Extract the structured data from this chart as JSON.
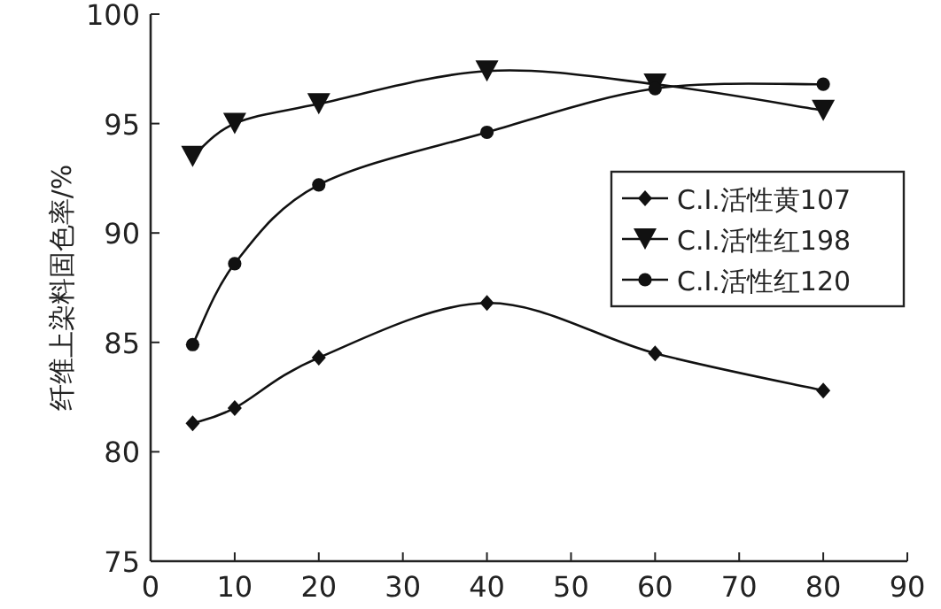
{
  "chart_data": {
    "type": "line",
    "ylabel": "纤维上染料固色率/%",
    "x": [
      5,
      10,
      20,
      40,
      60,
      80
    ],
    "series": [
      {
        "name": "C.I.活性黄107",
        "color": "#111111",
        "marker": "diamond",
        "values": [
          81.3,
          82.0,
          84.3,
          86.8,
          84.5,
          82.8
        ]
      },
      {
        "name": "C.I.活性红198",
        "color": "#111111",
        "marker": "triangle",
        "values": [
          93.5,
          95.0,
          95.9,
          97.4,
          96.8,
          95.6
        ]
      },
      {
        "name": "C.I.活性红120",
        "color": "#111111",
        "marker": "circle",
        "values": [
          84.9,
          88.6,
          92.2,
          94.6,
          96.6,
          96.8
        ]
      }
    ],
    "xlim": [
      0,
      90
    ],
    "xticks": [
      0,
      10,
      20,
      30,
      40,
      50,
      60,
      70,
      80,
      90
    ],
    "ylim": [
      75,
      100
    ],
    "yticks": [
      75,
      80,
      85,
      90,
      95,
      100
    ],
    "grid": false,
    "legend": "right",
    "line_style": "solid"
  }
}
